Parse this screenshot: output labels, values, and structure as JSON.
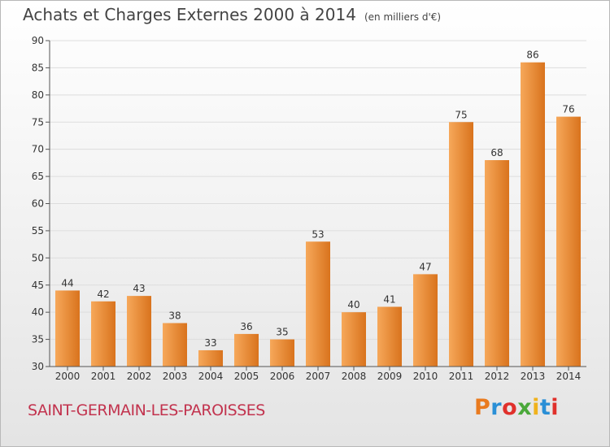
{
  "header": {
    "title": "Achats et Charges Externes 2000 à 2014",
    "unit": "(en milliers d'€)"
  },
  "footer": {
    "commune": "SAINT-GERMAIN-LES-PAROISSES",
    "logo": "Proxiti",
    "logo_colors": [
      "#e97a1e",
      "#2a8fd6",
      "#e0302b",
      "#4aa83a",
      "#f0b21d",
      "#2a8fd6",
      "#e0302b"
    ]
  },
  "colors": {
    "bar_light": "#f6a85a",
    "bar_dark": "#d9731d",
    "axis": "#555555",
    "grid": "#dddddd",
    "commune_text": "#c2334e"
  },
  "chart_data": {
    "type": "bar",
    "categories": [
      "2000",
      "2001",
      "2002",
      "2003",
      "2004",
      "2005",
      "2006",
      "2007",
      "2008",
      "2009",
      "2010",
      "2011",
      "2012",
      "2013",
      "2014"
    ],
    "values": [
      44,
      42,
      43,
      38,
      33,
      36,
      35,
      53,
      40,
      41,
      47,
      75,
      68,
      86,
      76
    ],
    "ylim": [
      30,
      90
    ],
    "yticks": [
      30,
      35,
      40,
      45,
      50,
      55,
      60,
      65,
      70,
      75,
      80,
      85,
      90
    ],
    "grid": true
  }
}
